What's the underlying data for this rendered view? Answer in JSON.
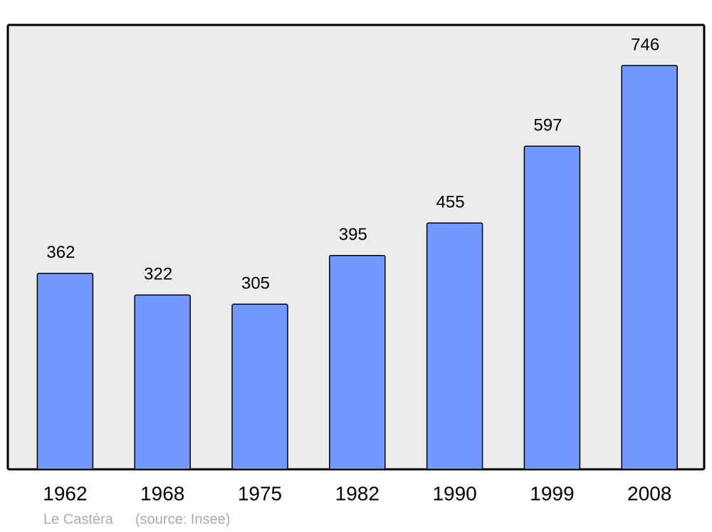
{
  "chart_data": {
    "type": "bar",
    "categories": [
      "1962",
      "1968",
      "1975",
      "1982",
      "1990",
      "1999",
      "2008"
    ],
    "values": [
      362,
      322,
      305,
      395,
      455,
      597,
      746
    ],
    "color": "#7398ff",
    "ylim": [
      0,
      821
    ],
    "place": "Le Castéra",
    "source": "(source: Insee)"
  }
}
